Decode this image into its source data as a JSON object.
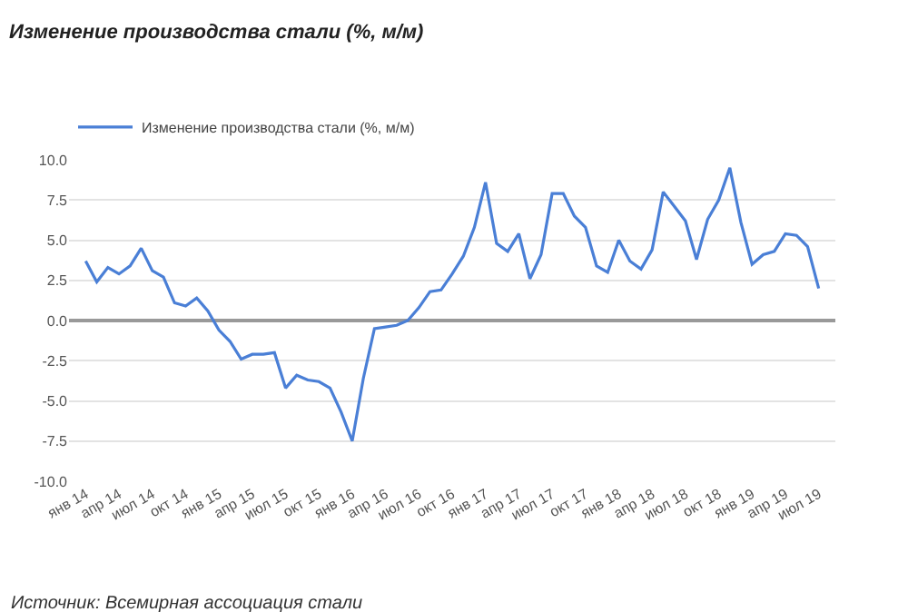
{
  "chart_data": {
    "type": "line",
    "title": "Изменение производства стали (%, м/м)",
    "categories": [
      "янв 14",
      null,
      null,
      "апр 14",
      null,
      null,
      "июл 14",
      null,
      null,
      "окт 14",
      null,
      null,
      "янв 15",
      null,
      null,
      "апр 15",
      null,
      null,
      "июл 15",
      null,
      null,
      "окт 15",
      null,
      null,
      "янв 16",
      null,
      null,
      "апр 16",
      null,
      null,
      "июл 16",
      null,
      null,
      "окт 16",
      null,
      null,
      "янв 17",
      null,
      null,
      "апр 17",
      null,
      null,
      "июл 17",
      null,
      null,
      "окт 17",
      null,
      null,
      "янв 18",
      null,
      null,
      "апр 18",
      null,
      null,
      "июл 18",
      null,
      null,
      "окт 18",
      null,
      null,
      "янв 19",
      null,
      null,
      "апр 19",
      null,
      null,
      "июл 19"
    ],
    "series": [
      {
        "name": "Изменение производства стали (%, м/м)",
        "color": "#4a7fd6",
        "values": [
          3.7,
          2.4,
          3.3,
          2.9,
          3.4,
          4.5,
          3.1,
          2.7,
          1.1,
          0.9,
          1.4,
          0.6,
          -0.6,
          -1.3,
          -2.4,
          -2.1,
          -2.1,
          -2.0,
          -4.2,
          -3.4,
          -3.7,
          -3.8,
          -4.2,
          -5.7,
          -7.5,
          -3.6,
          -0.5,
          -0.4,
          -0.3,
          0.0,
          0.8,
          1.8,
          1.9,
          2.9,
          4.0,
          5.8,
          8.6,
          4.8,
          4.3,
          5.4,
          2.6,
          4.1,
          7.9,
          7.9,
          6.5,
          5.8,
          3.4,
          3.0,
          5.0,
          3.7,
          3.2,
          4.4,
          8.0,
          7.1,
          6.2,
          3.8,
          6.3,
          7.5,
          9.5,
          6.1,
          3.5,
          4.1,
          4.3,
          5.4,
          5.3,
          4.6,
          2.0
        ]
      }
    ],
    "ylim": [
      -10,
      10
    ],
    "yticks": [
      {
        "value": -10,
        "label": "-10.0"
      },
      {
        "value": -7.5,
        "label": "-7.5"
      },
      {
        "value": -5,
        "label": "-5.0"
      },
      {
        "value": -2.5,
        "label": "-2.5"
      },
      {
        "value": 0,
        "label": "0.0"
      },
      {
        "value": 2.5,
        "label": "2.5"
      },
      {
        "value": 5,
        "label": "5.0"
      },
      {
        "value": 7.5,
        "label": "7.5"
      },
      {
        "value": 10,
        "label": "10.0"
      }
    ],
    "grid": "y",
    "legend": "top left",
    "marker": "none",
    "line_style": "solid",
    "annotations": [
      "Источник: Всемирная ассоциация стали"
    ]
  }
}
